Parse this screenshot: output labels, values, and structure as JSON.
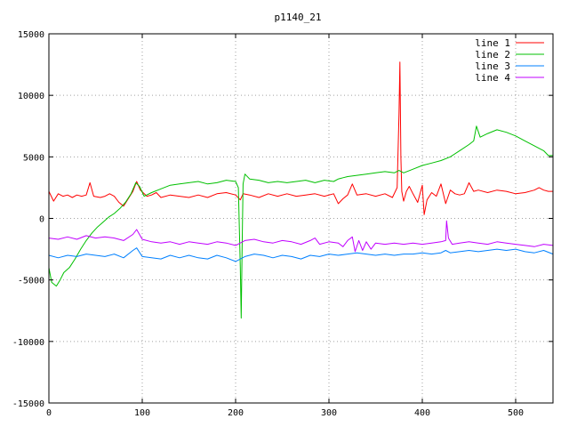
{
  "chart_data": {
    "type": "line",
    "title": "p1140_21",
    "xlabel": "",
    "ylabel": "",
    "xlim": [
      0,
      540
    ],
    "ylim": [
      -15000,
      15000
    ],
    "x_ticks": [
      0,
      100,
      200,
      300,
      400,
      500
    ],
    "x_tick_labels": [
      "0",
      "100",
      "200",
      "300",
      "400",
      "500"
    ],
    "y_ticks": [
      -15000,
      -10000,
      -5000,
      0,
      5000,
      10000,
      15000
    ],
    "y_tick_labels": [
      "-15000",
      "-10000",
      "-5000",
      "0",
      "5000",
      "10000",
      "15000"
    ],
    "grid": true,
    "legend_position": "top-right",
    "series": [
      {
        "name": "line 1",
        "color": "#ff0000",
        "points": [
          [
            0,
            2200
          ],
          [
            5,
            1400
          ],
          [
            10,
            2000
          ],
          [
            15,
            1800
          ],
          [
            20,
            1900
          ],
          [
            25,
            1700
          ],
          [
            30,
            1900
          ],
          [
            35,
            1800
          ],
          [
            40,
            1900
          ],
          [
            44,
            2900
          ],
          [
            48,
            1800
          ],
          [
            55,
            1700
          ],
          [
            60,
            1800
          ],
          [
            65,
            2000
          ],
          [
            70,
            1800
          ],
          [
            75,
            1300
          ],
          [
            80,
            1000
          ],
          [
            85,
            1600
          ],
          [
            90,
            2200
          ],
          [
            94,
            3000
          ],
          [
            98,
            2300
          ],
          [
            105,
            1800
          ],
          [
            110,
            1900
          ],
          [
            115,
            2100
          ],
          [
            120,
            1700
          ],
          [
            130,
            1900
          ],
          [
            140,
            1800
          ],
          [
            150,
            1700
          ],
          [
            160,
            1900
          ],
          [
            170,
            1700
          ],
          [
            180,
            2000
          ],
          [
            190,
            2100
          ],
          [
            200,
            1900
          ],
          [
            205,
            1500
          ],
          [
            208,
            2000
          ],
          [
            215,
            1900
          ],
          [
            225,
            1700
          ],
          [
            235,
            2000
          ],
          [
            245,
            1800
          ],
          [
            255,
            2000
          ],
          [
            265,
            1800
          ],
          [
            275,
            1900
          ],
          [
            285,
            2000
          ],
          [
            295,
            1800
          ],
          [
            305,
            2000
          ],
          [
            310,
            1200
          ],
          [
            315,
            1600
          ],
          [
            320,
            1900
          ],
          [
            325,
            2800
          ],
          [
            330,
            1900
          ],
          [
            340,
            2000
          ],
          [
            350,
            1800
          ],
          [
            360,
            2000
          ],
          [
            368,
            1700
          ],
          [
            373,
            2500
          ],
          [
            375,
            8500
          ],
          [
            376,
            12700
          ],
          [
            377,
            5000
          ],
          [
            378,
            2200
          ],
          [
            380,
            1400
          ],
          [
            383,
            2200
          ],
          [
            386,
            2600
          ],
          [
            390,
            2000
          ],
          [
            395,
            1300
          ],
          [
            400,
            2700
          ],
          [
            402,
            300
          ],
          [
            405,
            1500
          ],
          [
            410,
            2100
          ],
          [
            415,
            1800
          ],
          [
            420,
            2800
          ],
          [
            425,
            1200
          ],
          [
            430,
            2300
          ],
          [
            435,
            2000
          ],
          [
            440,
            1900
          ],
          [
            445,
            2000
          ],
          [
            450,
            2900
          ],
          [
            455,
            2200
          ],
          [
            460,
            2300
          ],
          [
            470,
            2100
          ],
          [
            480,
            2300
          ],
          [
            490,
            2200
          ],
          [
            500,
            2000
          ],
          [
            510,
            2100
          ],
          [
            520,
            2300
          ],
          [
            525,
            2500
          ],
          [
            530,
            2300
          ],
          [
            535,
            2200
          ],
          [
            540,
            2200
          ]
        ]
      },
      {
        "name": "line 2",
        "color": "#00c000",
        "points": [
          [
            0,
            -4000
          ],
          [
            3,
            -5200
          ],
          [
            8,
            -5500
          ],
          [
            12,
            -5000
          ],
          [
            16,
            -4400
          ],
          [
            22,
            -4000
          ],
          [
            28,
            -3300
          ],
          [
            34,
            -2500
          ],
          [
            40,
            -1800
          ],
          [
            46,
            -1200
          ],
          [
            52,
            -700
          ],
          [
            58,
            -300
          ],
          [
            64,
            100
          ],
          [
            70,
            400
          ],
          [
            76,
            800
          ],
          [
            82,
            1300
          ],
          [
            88,
            2000
          ],
          [
            93,
            2900
          ],
          [
            97,
            2600
          ],
          [
            102,
            1800
          ],
          [
            110,
            2100
          ],
          [
            120,
            2400
          ],
          [
            130,
            2700
          ],
          [
            140,
            2800
          ],
          [
            150,
            2900
          ],
          [
            160,
            3000
          ],
          [
            170,
            2800
          ],
          [
            180,
            2900
          ],
          [
            190,
            3100
          ],
          [
            200,
            3000
          ],
          [
            203,
            2500
          ],
          [
            205,
            -4000
          ],
          [
            206,
            -8100
          ],
          [
            207,
            -2000
          ],
          [
            208,
            2800
          ],
          [
            210,
            3600
          ],
          [
            215,
            3200
          ],
          [
            225,
            3100
          ],
          [
            235,
            2900
          ],
          [
            245,
            3000
          ],
          [
            255,
            2900
          ],
          [
            265,
            3000
          ],
          [
            275,
            3100
          ],
          [
            285,
            2900
          ],
          [
            295,
            3100
          ],
          [
            305,
            3000
          ],
          [
            310,
            3200
          ],
          [
            315,
            3300
          ],
          [
            320,
            3400
          ],
          [
            330,
            3500
          ],
          [
            340,
            3600
          ],
          [
            350,
            3700
          ],
          [
            360,
            3800
          ],
          [
            370,
            3700
          ],
          [
            375,
            3900
          ],
          [
            380,
            3700
          ],
          [
            390,
            4000
          ],
          [
            400,
            4300
          ],
          [
            410,
            4500
          ],
          [
            420,
            4700
          ],
          [
            430,
            5000
          ],
          [
            440,
            5500
          ],
          [
            450,
            6000
          ],
          [
            455,
            6300
          ],
          [
            458,
            7500
          ],
          [
            462,
            6600
          ],
          [
            470,
            6900
          ],
          [
            480,
            7200
          ],
          [
            490,
            7000
          ],
          [
            500,
            6700
          ],
          [
            510,
            6300
          ],
          [
            520,
            5900
          ],
          [
            530,
            5500
          ],
          [
            535,
            5100
          ],
          [
            540,
            5100
          ]
        ]
      },
      {
        "name": "line 3",
        "color": "#0080ff",
        "points": [
          [
            0,
            -3000
          ],
          [
            10,
            -3200
          ],
          [
            20,
            -3000
          ],
          [
            30,
            -3100
          ],
          [
            40,
            -2900
          ],
          [
            50,
            -3000
          ],
          [
            60,
            -3100
          ],
          [
            70,
            -2900
          ],
          [
            80,
            -3200
          ],
          [
            90,
            -2600
          ],
          [
            94,
            -2400
          ],
          [
            100,
            -3100
          ],
          [
            110,
            -3200
          ],
          [
            120,
            -3300
          ],
          [
            130,
            -3000
          ],
          [
            140,
            -3200
          ],
          [
            150,
            -3000
          ],
          [
            160,
            -3200
          ],
          [
            170,
            -3300
          ],
          [
            180,
            -3000
          ],
          [
            190,
            -3200
          ],
          [
            200,
            -3500
          ],
          [
            210,
            -3100
          ],
          [
            220,
            -2900
          ],
          [
            230,
            -3000
          ],
          [
            240,
            -3200
          ],
          [
            250,
            -3000
          ],
          [
            260,
            -3100
          ],
          [
            270,
            -3300
          ],
          [
            280,
            -3000
          ],
          [
            290,
            -3100
          ],
          [
            300,
            -2900
          ],
          [
            310,
            -3000
          ],
          [
            320,
            -2900
          ],
          [
            330,
            -2800
          ],
          [
            340,
            -2900
          ],
          [
            350,
            -3000
          ],
          [
            360,
            -2900
          ],
          [
            370,
            -3000
          ],
          [
            380,
            -2900
          ],
          [
            390,
            -2900
          ],
          [
            400,
            -2800
          ],
          [
            410,
            -2900
          ],
          [
            420,
            -2800
          ],
          [
            425,
            -2600
          ],
          [
            430,
            -2800
          ],
          [
            440,
            -2700
          ],
          [
            450,
            -2600
          ],
          [
            460,
            -2700
          ],
          [
            470,
            -2600
          ],
          [
            480,
            -2500
          ],
          [
            490,
            -2600
          ],
          [
            500,
            -2500
          ],
          [
            510,
            -2700
          ],
          [
            520,
            -2800
          ],
          [
            530,
            -2600
          ],
          [
            540,
            -2900
          ]
        ]
      },
      {
        "name": "line 4",
        "color": "#c000ff",
        "points": [
          [
            0,
            -1600
          ],
          [
            10,
            -1700
          ],
          [
            20,
            -1500
          ],
          [
            30,
            -1700
          ],
          [
            40,
            -1400
          ],
          [
            50,
            -1600
          ],
          [
            60,
            -1500
          ],
          [
            70,
            -1600
          ],
          [
            80,
            -1800
          ],
          [
            90,
            -1300
          ],
          [
            94,
            -900
          ],
          [
            100,
            -1700
          ],
          [
            110,
            -1900
          ],
          [
            120,
            -2000
          ],
          [
            130,
            -1900
          ],
          [
            140,
            -2100
          ],
          [
            150,
            -1900
          ],
          [
            160,
            -2000
          ],
          [
            170,
            -2100
          ],
          [
            180,
            -1900
          ],
          [
            190,
            -2000
          ],
          [
            200,
            -2200
          ],
          [
            210,
            -1800
          ],
          [
            220,
            -1700
          ],
          [
            230,
            -1900
          ],
          [
            240,
            -2000
          ],
          [
            250,
            -1800
          ],
          [
            260,
            -1900
          ],
          [
            270,
            -2100
          ],
          [
            280,
            -1800
          ],
          [
            285,
            -1600
          ],
          [
            290,
            -2100
          ],
          [
            300,
            -1900
          ],
          [
            310,
            -2000
          ],
          [
            315,
            -2300
          ],
          [
            320,
            -1800
          ],
          [
            325,
            -1500
          ],
          [
            328,
            -2700
          ],
          [
            332,
            -1800
          ],
          [
            336,
            -2600
          ],
          [
            340,
            -1900
          ],
          [
            345,
            -2500
          ],
          [
            350,
            -2000
          ],
          [
            360,
            -2100
          ],
          [
            370,
            -2000
          ],
          [
            380,
            -2100
          ],
          [
            390,
            -2000
          ],
          [
            400,
            -2100
          ],
          [
            410,
            -2000
          ],
          [
            420,
            -1900
          ],
          [
            425,
            -1800
          ],
          [
            426,
            -200
          ],
          [
            428,
            -1600
          ],
          [
            432,
            -2100
          ],
          [
            440,
            -2000
          ],
          [
            450,
            -1900
          ],
          [
            460,
            -2000
          ],
          [
            470,
            -2100
          ],
          [
            480,
            -1900
          ],
          [
            490,
            -2000
          ],
          [
            500,
            -2100
          ],
          [
            510,
            -2200
          ],
          [
            520,
            -2300
          ],
          [
            530,
            -2100
          ],
          [
            540,
            -2200
          ]
        ]
      }
    ]
  }
}
